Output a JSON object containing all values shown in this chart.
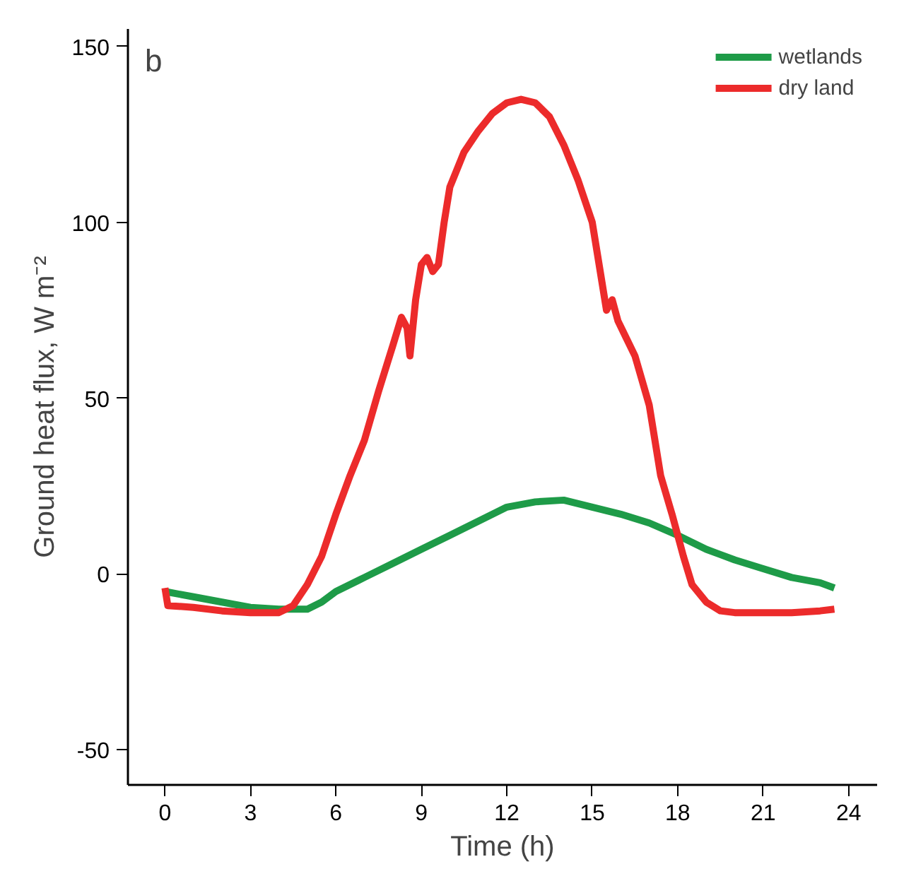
{
  "chart_data": {
    "type": "line",
    "xlabel": "Time (h)",
    "ylabel": "Ground heat flux, W m⁻²",
    "annotations": [
      "b"
    ],
    "xlim": [
      -1.3,
      25
    ],
    "ylim": [
      -60,
      155
    ],
    "xticks": [
      0,
      3,
      6,
      9,
      12,
      15,
      18,
      21,
      24
    ],
    "yticks": [
      -50,
      0,
      50,
      100,
      150
    ],
    "grid": false,
    "legend": "top right",
    "line_style": "solid",
    "marker": "none",
    "series": [
      {
        "name": "wetlands",
        "color": "#1e9b48",
        "x": [
          0,
          1,
          2,
          3,
          4,
          5,
          5.5,
          6,
          7,
          8,
          9,
          10,
          11,
          12,
          13,
          14,
          15,
          16,
          17,
          18,
          19,
          20,
          21,
          22,
          23,
          23.5
        ],
        "values": [
          -5,
          -6.5,
          -8,
          -9.5,
          -10,
          -10,
          -8,
          -5,
          -1,
          3,
          7,
          11,
          15,
          19,
          20.5,
          21,
          19,
          17,
          14.5,
          11,
          7,
          4,
          1.5,
          -1,
          -2.5,
          -4
        ]
      },
      {
        "name": "dry land",
        "color": "#ec2b2b",
        "x": [
          0,
          0.1,
          1,
          2,
          3,
          4,
          4.5,
          5,
          5.5,
          6,
          6.5,
          7,
          7.5,
          8,
          8.3,
          8.5,
          8.6,
          8.8,
          9,
          9.2,
          9.4,
          9.6,
          9.8,
          10,
          10.5,
          11,
          11.5,
          12,
          12.5,
          13,
          13.5,
          14,
          14.5,
          15,
          15.3,
          15.5,
          15.7,
          15.9,
          16.2,
          16.5,
          17,
          17.4,
          17.8,
          18.2,
          18.5,
          19,
          19.5,
          20,
          21,
          22,
          23,
          23.5
        ],
        "values": [
          -4,
          -9,
          -9.5,
          -10.5,
          -11,
          -11,
          -9,
          -3,
          5,
          17,
          28,
          38,
          52,
          65,
          73,
          70,
          62,
          78,
          88,
          90,
          86,
          88,
          100,
          110,
          120,
          126,
          131,
          134,
          135,
          134,
          130,
          122,
          112,
          100,
          85,
          75,
          78,
          72,
          67,
          62,
          48,
          28,
          17,
          5,
          -3,
          -8,
          -10.5,
          -11,
          -11,
          -11,
          -10.5,
          -10
        ]
      }
    ]
  }
}
